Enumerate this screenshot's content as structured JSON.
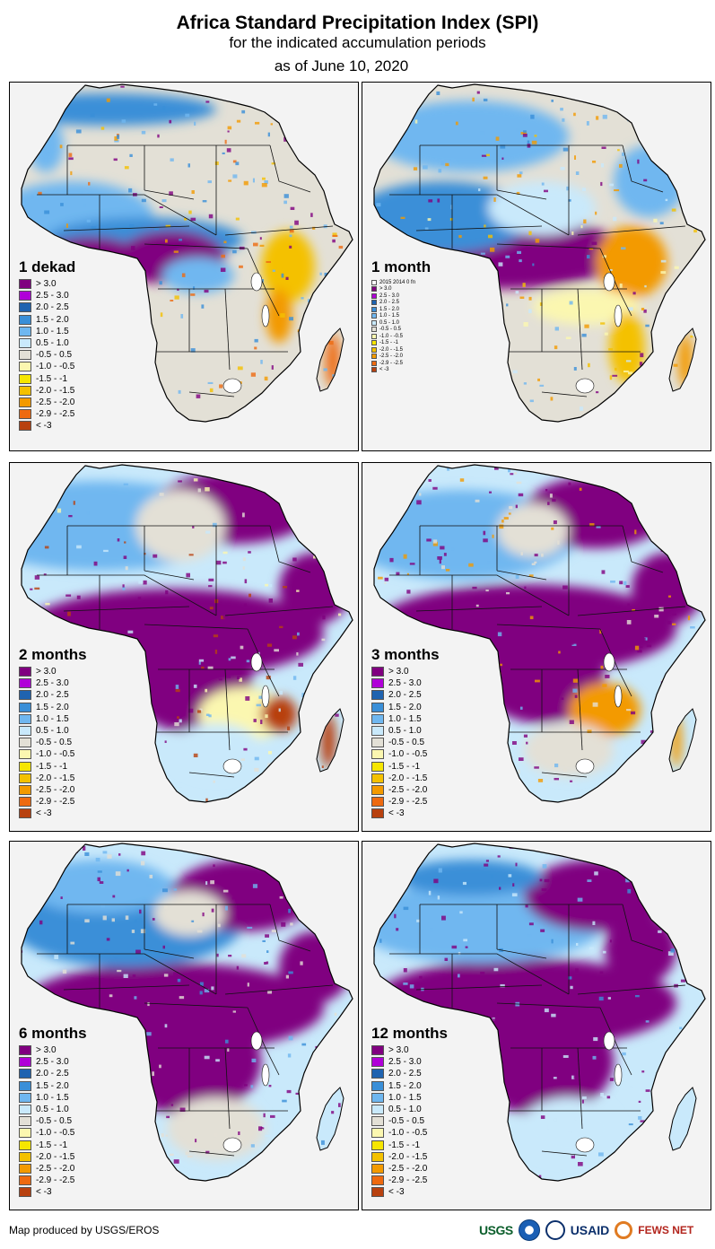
{
  "header": {
    "title": "Africa Standard Precipitation Index (SPI)",
    "subtitle": "for the indicated accumulation periods",
    "date_line": "as of June 10, 2020"
  },
  "legend_classes": [
    {
      "label": "> 3.0",
      "color": "#800080"
    },
    {
      "label": "2.5 - 3.0",
      "color": "#b000d8"
    },
    {
      "label": "2.0 - 2.5",
      "color": "#1f63b0"
    },
    {
      "label": "1.5 - 2.0",
      "color": "#3a8fd8"
    },
    {
      "label": "1.0 - 1.5",
      "color": "#6fb7f0"
    },
    {
      "label": "0.5 - 1.0",
      "color": "#c9e9fb"
    },
    {
      "label": "-0.5 - 0.5",
      "color": "#e3e0d6"
    },
    {
      "label": "-1.0 - -0.5",
      "color": "#fbf7b0"
    },
    {
      "label": "-1.5 - -1",
      "color": "#f6e600"
    },
    {
      "label": "-2.0 - -1.5",
      "color": "#f4c100"
    },
    {
      "label": "-2.5 - -2.0",
      "color": "#f39a00"
    },
    {
      "label": "-2.9 - -2.5",
      "color": "#ee6a10"
    },
    {
      "label": "< -3",
      "color": "#b8410f"
    }
  ],
  "panels": [
    {
      "id": "p1",
      "label": "1 dekad",
      "legend_style": "full",
      "profile": "dekad"
    },
    {
      "id": "p2",
      "label": "1 month",
      "legend_style": "small",
      "legend_note": "2015  2014  0  fn",
      "profile": "month1"
    },
    {
      "id": "p3",
      "label": "2 months",
      "legend_style": "full",
      "profile": "month2"
    },
    {
      "id": "p4",
      "label": "3 months",
      "legend_style": "full",
      "profile": "month3"
    },
    {
      "id": "p5",
      "label": "6 months",
      "legend_style": "full",
      "profile": "month6"
    },
    {
      "id": "p6",
      "label": "12 months",
      "legend_style": "full",
      "profile": "month12"
    }
  ],
  "footer": {
    "credit": "Map produced by USGS/EROS",
    "logos": {
      "usgs": "USGS",
      "usaid": "USAID",
      "fews": "FEWS NET"
    }
  }
}
